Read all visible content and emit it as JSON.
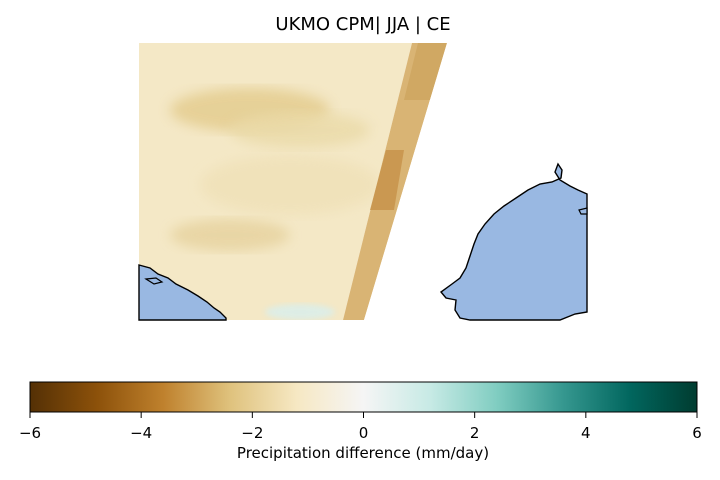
{
  "title": "UKMO CPM| JJA | CE",
  "colorbar": {
    "label": "Precipitation difference (mm/day)",
    "range": [
      -6,
      6
    ],
    "ticks": [
      "−6",
      "−4",
      "−2",
      "0",
      "2",
      "4",
      "6"
    ],
    "tick_values": [
      -6,
      -4,
      -2,
      0,
      2,
      4,
      6
    ],
    "colormap": "BrBG",
    "stops": [
      "#543005",
      "#8c510a",
      "#bf812d",
      "#dfc27d",
      "#f6e8c3",
      "#f5f5f5",
      "#c7eae5",
      "#80cdc1",
      "#35978f",
      "#01665e",
      "#003c30"
    ]
  },
  "colors": {
    "land": "#99b8e2",
    "coast": "#000000",
    "field_main": "#f4e7c4",
    "field_dry": "#e6cf96",
    "strip_dry": "#cfa55a"
  }
}
